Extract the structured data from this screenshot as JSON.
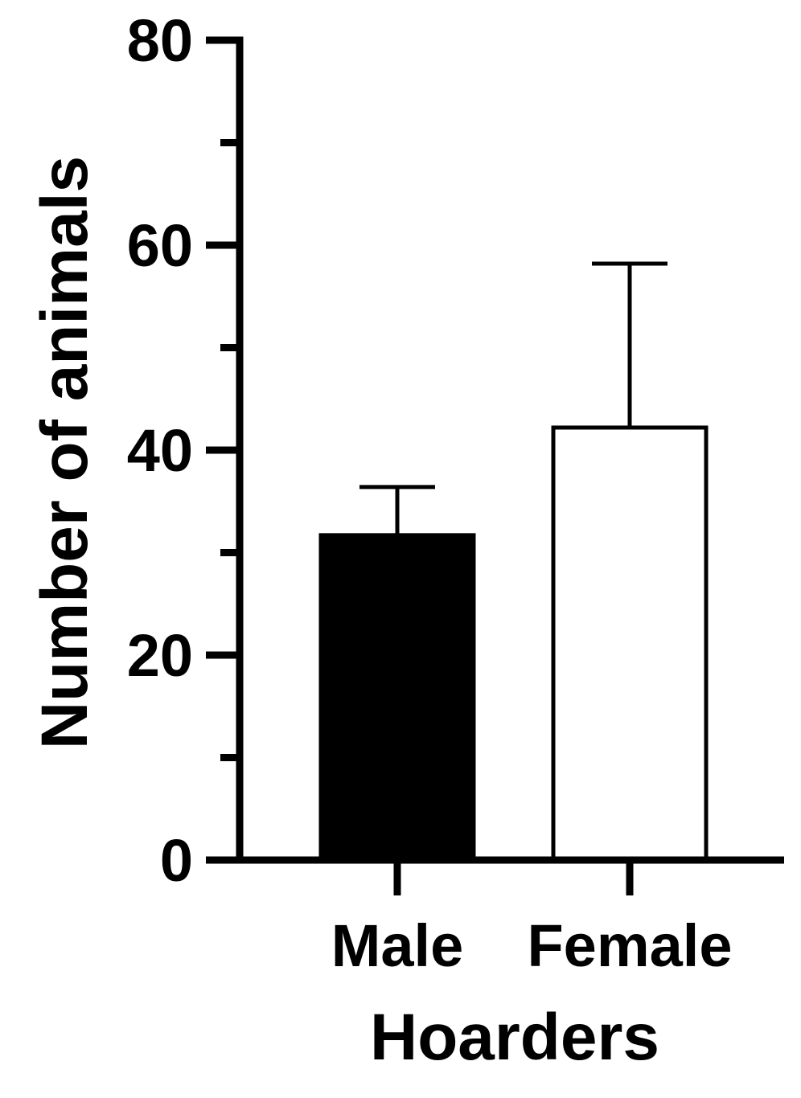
{
  "chart_data": {
    "type": "bar",
    "title": "",
    "xlabel": "Hoarders",
    "ylabel": "Number of animals",
    "categories": [
      "Male",
      "Female"
    ],
    "values": [
      31.7,
      42.2
    ],
    "error_upper": [
      36.4,
      58.2
    ],
    "bar_fill": [
      "#000000",
      "#ffffff"
    ],
    "bar_stroke": "#000000",
    "ylim": [
      0,
      80
    ],
    "major_ticks": [
      0,
      20,
      40,
      60,
      80
    ],
    "major_tick_labels": [
      "0",
      "20",
      "40",
      "60",
      "80"
    ],
    "minor_ticks": [
      10,
      30,
      50,
      70
    ],
    "grid": false,
    "legend": "none"
  }
}
